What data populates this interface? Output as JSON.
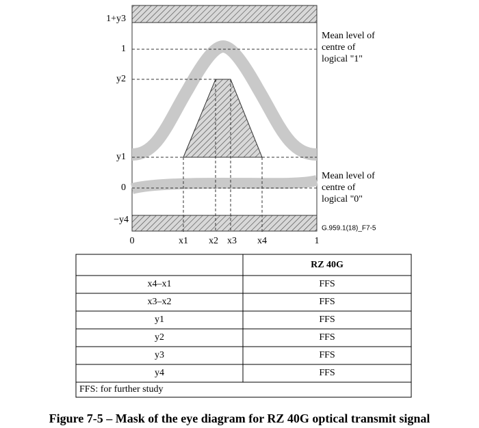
{
  "diagram": {
    "y_labels": [
      "1+y3",
      "1",
      "y2",
      "y1",
      "0",
      "−y4"
    ],
    "x_labels": [
      "0",
      "x1",
      "x2",
      "x3",
      "x4",
      "1"
    ],
    "annotations": [
      [
        "Mean level of",
        "centre of",
        "logical \"1\""
      ],
      [
        "Mean level of",
        "centre of",
        "logical \"0\""
      ]
    ],
    "figure_id": "G.959.1(18)_F7-5"
  },
  "table": {
    "header": "RZ 40G",
    "rows": [
      [
        "x4–x1",
        "FFS"
      ],
      [
        "x3–x2",
        "FFS"
      ],
      [
        "y1",
        "FFS"
      ],
      [
        "y2",
        "FFS"
      ],
      [
        "y3",
        "FFS"
      ],
      [
        "y4",
        "FFS"
      ]
    ],
    "footnote": "FFS: for further study"
  },
  "caption": "Figure 7-5 – Mask of the eye diagram for RZ 40G optical transmit signal"
}
